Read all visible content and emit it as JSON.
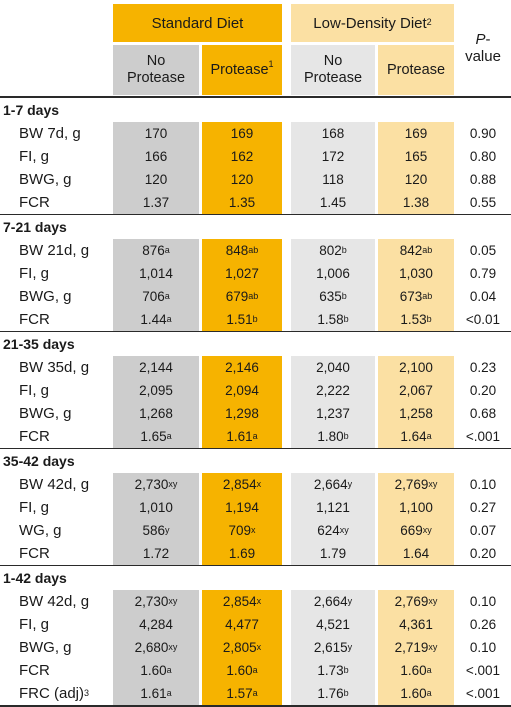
{
  "header": {
    "standard_diet": "Standard Diet",
    "low_density_diet": "Low-Density Diet",
    "low_density_sup": "2",
    "no_protease_1": "No\nProtease",
    "protease_1": "Protease",
    "protease_1_sup": "1",
    "no_protease_2": "No\nProtease",
    "protease_2": "Protease",
    "pvalue_italic": "P",
    "pvalue_rest": "-\nvalue"
  },
  "sections": [
    {
      "title": "1-7 days",
      "rows": [
        {
          "label": "BW 7d, g",
          "label_sup": "",
          "cells": [
            {
              "v": "170",
              "s": ""
            },
            {
              "v": "169",
              "s": ""
            },
            {
              "v": "168",
              "s": ""
            },
            {
              "v": "169",
              "s": ""
            }
          ],
          "p": "0.90"
        },
        {
          "label": "FI, g",
          "label_sup": "",
          "cells": [
            {
              "v": "166",
              "s": ""
            },
            {
              "v": "162",
              "s": ""
            },
            {
              "v": "172",
              "s": ""
            },
            {
              "v": "165",
              "s": ""
            }
          ],
          "p": "0.80"
        },
        {
          "label": "BWG, g",
          "label_sup": "",
          "cells": [
            {
              "v": "120",
              "s": ""
            },
            {
              "v": "120",
              "s": ""
            },
            {
              "v": "118",
              "s": ""
            },
            {
              "v": "120",
              "s": ""
            }
          ],
          "p": "0.88"
        },
        {
          "label": "FCR",
          "label_sup": "",
          "cells": [
            {
              "v": "1.37",
              "s": ""
            },
            {
              "v": "1.35",
              "s": ""
            },
            {
              "v": "1.45",
              "s": ""
            },
            {
              "v": "1.38",
              "s": ""
            }
          ],
          "p": "0.55"
        }
      ]
    },
    {
      "title": "7-21 days",
      "rows": [
        {
          "label": "BW 21d, g",
          "label_sup": "",
          "cells": [
            {
              "v": "876",
              "s": "a"
            },
            {
              "v": "848",
              "s": "ab"
            },
            {
              "v": "802",
              "s": "b"
            },
            {
              "v": "842",
              "s": "ab"
            }
          ],
          "p": "0.05"
        },
        {
          "label": "FI, g",
          "label_sup": "",
          "cells": [
            {
              "v": "1,014",
              "s": ""
            },
            {
              "v": "1,027",
              "s": ""
            },
            {
              "v": "1,006",
              "s": ""
            },
            {
              "v": "1,030",
              "s": ""
            }
          ],
          "p": "0.79"
        },
        {
          "label": "BWG, g",
          "label_sup": "",
          "cells": [
            {
              "v": "706",
              "s": "a"
            },
            {
              "v": "679",
              "s": "ab"
            },
            {
              "v": "635",
              "s": "b"
            },
            {
              "v": "673",
              "s": "ab"
            }
          ],
          "p": "0.04"
        },
        {
          "label": "FCR",
          "label_sup": "",
          "cells": [
            {
              "v": "1.44",
              "s": "a"
            },
            {
              "v": "1.51",
              "s": "b"
            },
            {
              "v": "1.58",
              "s": "b"
            },
            {
              "v": "1.53",
              "s": "b"
            }
          ],
          "p": "<0.01"
        }
      ]
    },
    {
      "title": "21-35 days",
      "rows": [
        {
          "label": "BW 35d, g",
          "label_sup": "",
          "cells": [
            {
              "v": "2,144",
              "s": ""
            },
            {
              "v": "2,146",
              "s": ""
            },
            {
              "v": "2,040",
              "s": ""
            },
            {
              "v": "2,100",
              "s": ""
            }
          ],
          "p": "0.23"
        },
        {
          "label": "FI, g",
          "label_sup": "",
          "cells": [
            {
              "v": "2,095",
              "s": ""
            },
            {
              "v": "2,094",
              "s": ""
            },
            {
              "v": "2,222",
              "s": ""
            },
            {
              "v": "2,067",
              "s": ""
            }
          ],
          "p": "0.20"
        },
        {
          "label": "BWG, g",
          "label_sup": "",
          "cells": [
            {
              "v": "1,268",
              "s": ""
            },
            {
              "v": "1,298",
              "s": ""
            },
            {
              "v": "1,237",
              "s": ""
            },
            {
              "v": "1,258",
              "s": ""
            }
          ],
          "p": "0.68"
        },
        {
          "label": "FCR",
          "label_sup": "",
          "cells": [
            {
              "v": "1.65",
              "s": "a"
            },
            {
              "v": "1.61",
              "s": "a"
            },
            {
              "v": "1.80",
              "s": "b"
            },
            {
              "v": "1.64",
              "s": "a"
            }
          ],
          "p": "<.001"
        }
      ]
    },
    {
      "title": "35-42 days",
      "rows": [
        {
          "label": "BW 42d, g",
          "label_sup": "",
          "cells": [
            {
              "v": "2,730",
              "s": "xy"
            },
            {
              "v": "2,854",
              "s": "x"
            },
            {
              "v": "2,664",
              "s": "y"
            },
            {
              "v": "2,769",
              "s": "xy"
            }
          ],
          "p": "0.10"
        },
        {
          "label": "FI, g",
          "label_sup": "",
          "cells": [
            {
              "v": "1,010",
              "s": ""
            },
            {
              "v": "1,194",
              "s": ""
            },
            {
              "v": "1,121",
              "s": ""
            },
            {
              "v": "1,100",
              "s": ""
            }
          ],
          "p": "0.27"
        },
        {
          "label": "WG, g",
          "label_sup": "",
          "cells": [
            {
              "v": "586",
              "s": "y"
            },
            {
              "v": "709",
              "s": "x"
            },
            {
              "v": "624",
              "s": "xy"
            },
            {
              "v": "669",
              "s": "xy"
            }
          ],
          "p": "0.07"
        },
        {
          "label": "FCR",
          "label_sup": "",
          "cells": [
            {
              "v": "1.72",
              "s": ""
            },
            {
              "v": "1.69",
              "s": ""
            },
            {
              "v": "1.79",
              "s": ""
            },
            {
              "v": "1.64",
              "s": ""
            }
          ],
          "p": "0.20"
        }
      ]
    },
    {
      "title": "1-42 days",
      "rows": [
        {
          "label": "BW 42d, g",
          "label_sup": "",
          "cells": [
            {
              "v": "2,730",
              "s": "xy"
            },
            {
              "v": "2,854",
              "s": "x"
            },
            {
              "v": "2,664",
              "s": "y"
            },
            {
              "v": "2,769",
              "s": "xy"
            }
          ],
          "p": "0.10"
        },
        {
          "label": "FI, g",
          "label_sup": "",
          "cells": [
            {
              "v": "4,284",
              "s": ""
            },
            {
              "v": "4,477",
              "s": ""
            },
            {
              "v": "4,521",
              "s": ""
            },
            {
              "v": "4,361",
              "s": ""
            }
          ],
          "p": "0.26"
        },
        {
          "label": "BWG, g",
          "label_sup": "",
          "cells": [
            {
              "v": "2,680",
              "s": "xy"
            },
            {
              "v": "2,805",
              "s": "x"
            },
            {
              "v": "2,615",
              "s": "y"
            },
            {
              "v": "2,719",
              "s": "xy"
            }
          ],
          "p": "0.10"
        },
        {
          "label": "FCR",
          "label_sup": "",
          "cells": [
            {
              "v": "1.60",
              "s": "a"
            },
            {
              "v": "1.60",
              "s": "a"
            },
            {
              "v": "1.73",
              "s": "b"
            },
            {
              "v": "1.60",
              "s": "a"
            }
          ],
          "p": "<.001"
        },
        {
          "label": "FRC (adj)",
          "label_sup": "3",
          "cells": [
            {
              "v": "1.61",
              "s": "a"
            },
            {
              "v": "1.57",
              "s": "a"
            },
            {
              "v": "1.76",
              "s": "b"
            },
            {
              "v": "1.60",
              "s": "a"
            }
          ],
          "p": "<.001"
        }
      ]
    }
  ]
}
